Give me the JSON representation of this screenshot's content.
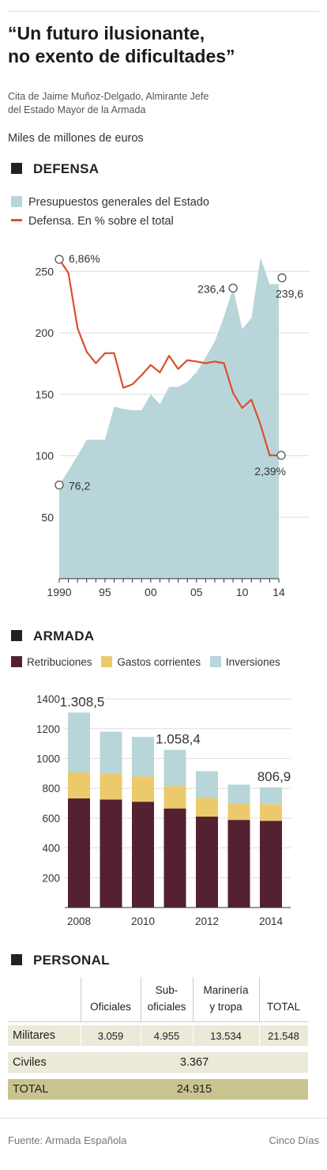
{
  "header": {
    "title_line1": "“Un futuro ilusionante,",
    "title_line2": "no exento de dificultades”",
    "quote_line1": "Cita de Jaime Muñoz-Delgado, Almirante Jefe",
    "quote_line2": "del Estado Mayor de la Armada",
    "units": "Miles de millones de euros"
  },
  "colors": {
    "area": "#b8d6d9",
    "line": "#d9502c",
    "retribuciones": "#55202f",
    "gastos": "#ecc96b",
    "inversiones": "#b8d6d9",
    "section_square": "#222222",
    "total_row": "#c9c48f",
    "shaded_row": "#ebe9d7"
  },
  "sections": {
    "defensa": "DEFENSA",
    "armada": "ARMADA",
    "personal": "PERSONAL"
  },
  "chart_data": [
    {
      "type": "area",
      "legend": [
        "Presupuestos generales del Estado",
        "Defensa. En % sobre el total"
      ],
      "x_ticks": [
        "1990",
        "95",
        "00",
        "05",
        "10",
        "14"
      ],
      "y_ticks": [
        "50",
        "100",
        "150",
        "200",
        "250"
      ],
      "ylim": [
        0,
        270
      ],
      "series": [
        {
          "name": "Presupuestos generales del Estado",
          "x": [
            1990,
            1991,
            1992,
            1993,
            1994,
            1995,
            1996,
            1997,
            1998,
            1999,
            2000,
            2001,
            2002,
            2003,
            2004,
            2005,
            2006,
            2007,
            2008,
            2009,
            2010,
            2011,
            2012,
            2013,
            2014
          ],
          "values": [
            76.2,
            88,
            100,
            113,
            113,
            113,
            140,
            138,
            137,
            137,
            150,
            142,
            156,
            156,
            160,
            168,
            180,
            193,
            213,
            236.4,
            203,
            212,
            261,
            239.6,
            239.6
          ]
        },
        {
          "name": "Defensa. En % sobre el total",
          "x": [
            1990,
            1991,
            1992,
            1993,
            1994,
            1995,
            1996,
            1997,
            1998,
            1999,
            2000,
            2001,
            2002,
            2003,
            2004,
            2005,
            2006,
            2007,
            2008,
            2009,
            2010,
            2011,
            2012,
            2013,
            2014
          ],
          "values": [
            6.86,
            6.55,
            5.29,
            4.75,
            4.49,
            4.72,
            4.72,
            3.93,
            4.01,
            4.22,
            4.45,
            4.28,
            4.66,
            4.36,
            4.56,
            4.53,
            4.49,
            4.53,
            4.49,
            3.81,
            3.47,
            3.66,
            3.09,
            2.39,
            2.39
          ]
        }
      ],
      "annotations": [
        {
          "label": "6,86%",
          "x": 1990,
          "series": 1
        },
        {
          "label": "76,2",
          "x": 1990,
          "series": 0
        },
        {
          "label": "236,4",
          "x": 2009,
          "series": 0
        },
        {
          "label": "239,6",
          "x": 2014,
          "series": 0
        },
        {
          "label": "2,39%",
          "x": 2014,
          "series": 1
        }
      ]
    },
    {
      "type": "bar",
      "stacked": true,
      "categories": [
        "2008",
        "2009",
        "2010",
        "2011",
        "2012",
        "2013",
        "2014"
      ],
      "x_tick_labels": [
        "2008",
        "",
        "2010",
        "",
        "2012",
        "",
        "2014"
      ],
      "y_ticks": [
        "200",
        "400",
        "600",
        "800",
        "1000",
        "1200",
        "1400"
      ],
      "ylim": [
        0,
        1400
      ],
      "series": [
        {
          "name": "Retribuciones",
          "values": [
            732,
            725,
            710,
            665,
            610,
            588,
            582
          ]
        },
        {
          "name": "Gastos corrientes",
          "values": [
            175,
            175,
            170,
            150,
            125,
            110,
            112
          ]
        },
        {
          "name": "Inversiones",
          "values": [
            401.5,
            280,
            265,
            243.4,
            180,
            127,
            112.9
          ]
        }
      ],
      "totals": [
        1308.5,
        1180,
        1145,
        1058.4,
        915,
        825,
        806.9
      ],
      "data_labels": [
        {
          "label": "1.308,5",
          "category": "2008"
        },
        {
          "label": "1.058,4",
          "category": "2011"
        },
        {
          "label": "806,9",
          "category": "2014"
        }
      ]
    }
  ],
  "personal": {
    "headers": [
      {
        "line1": "",
        "line2": "Oficiales"
      },
      {
        "line1": "Sub-",
        "line2": "oficiales"
      },
      {
        "line1": "Marinería",
        "line2": "y tropa"
      },
      {
        "line1": "",
        "line2": "TOTAL"
      }
    ],
    "militares": {
      "label": "Militares",
      "values": [
        "3.059",
        "4.955",
        "13.534",
        "21.548"
      ]
    },
    "civiles": {
      "label": "Civiles",
      "value": "3.367"
    },
    "total": {
      "label": "TOTAL",
      "value": "24.915"
    }
  },
  "footer": {
    "source": "Fuente: Armada Española",
    "brand": "Cinco Días"
  }
}
